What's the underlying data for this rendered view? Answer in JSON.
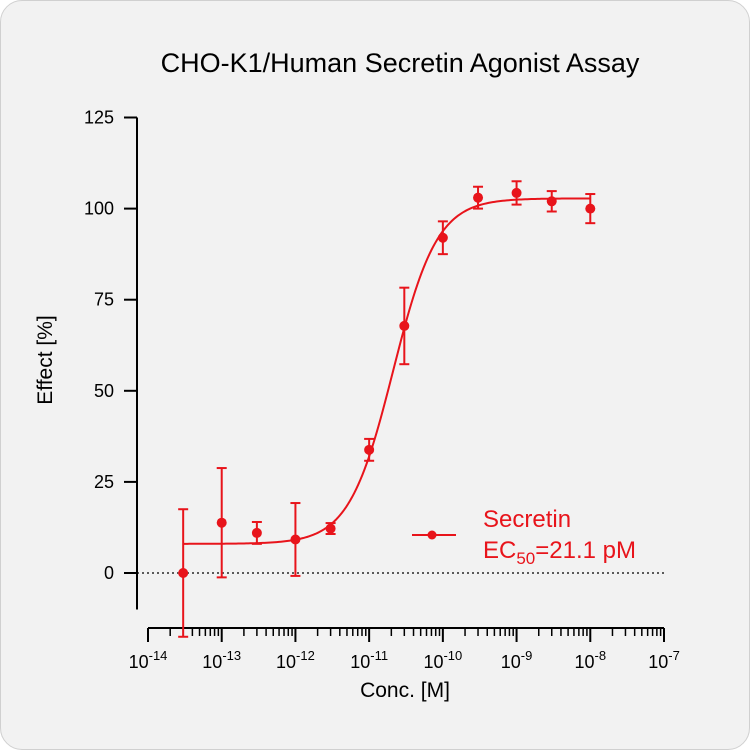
{
  "chart_data": {
    "type": "scatter",
    "title": "CHO-K1/Human Secretin Agonist Assay",
    "xlabel": "Conc. [M]",
    "ylabel": "Effect  [%]",
    "x_scale": "log",
    "xlim": [
      1e-14,
      1e-07
    ],
    "ylim": [
      -10,
      125
    ],
    "x_tick_exponents": [
      "-14",
      "-13",
      "-12",
      "-11",
      "-10",
      "-9",
      "-8",
      "-7"
    ],
    "x_tick_base": "10",
    "y_ticks": [
      "0",
      "25",
      "50",
      "75",
      "100",
      "125"
    ],
    "zero_reference_line": "dotted",
    "color": "#e8141b",
    "series": [
      {
        "name": "Secretin",
        "ec50_label": "EC",
        "ec50_subscript": "50",
        "ec50_value": "=21.1 pM",
        "x": [
          3e-14,
          1e-13,
          3e-13,
          1e-12,
          3e-12,
          1e-11,
          3e-11,
          1e-10,
          3e-10,
          1e-09,
          3e-09,
          1e-08
        ],
        "y": [
          0,
          13.8,
          11,
          9.2,
          12.2,
          33.8,
          67.8,
          92,
          103,
          104.3,
          102,
          100
        ],
        "error": [
          17.5,
          15,
          3,
          10,
          1.5,
          3,
          10.5,
          4.5,
          3,
          3.2,
          2.8,
          4
        ],
        "fit": {
          "bottom": 8,
          "top": 102.8,
          "ec50": 2.11e-11,
          "hill": 1.45
        }
      }
    ]
  }
}
